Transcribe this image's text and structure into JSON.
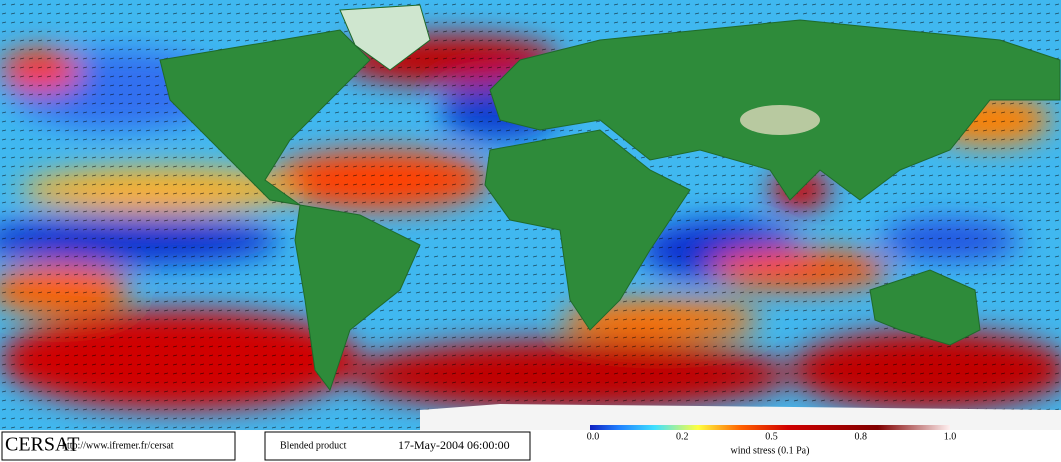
{
  "branding": {
    "logo": "CERSAT",
    "url": "http://www.ifremer.fr/cersat"
  },
  "product": "Blended product",
  "timestamp": "17-May-2004 06:00:00",
  "legend": {
    "ticks": [
      "0.0",
      "0.2",
      "0.5",
      "0.8",
      "1.0"
    ],
    "label": "wind stress (0.1 Pa)"
  }
}
